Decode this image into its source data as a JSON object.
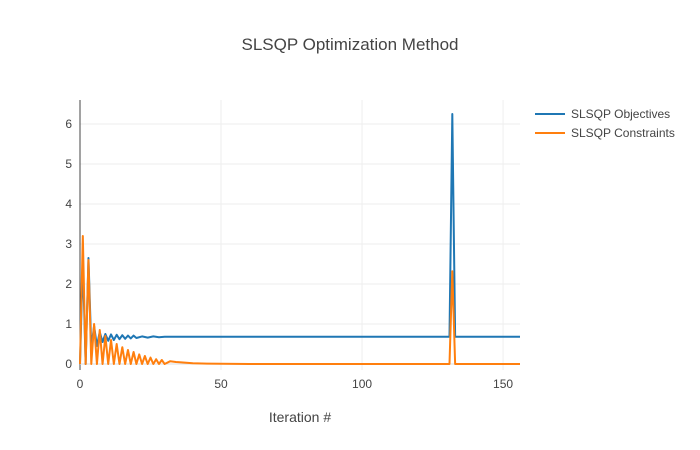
{
  "chart_data": {
    "type": "line",
    "title": "SLSQP Optimization Method",
    "xlabel": "Iteration #",
    "ylabel": "",
    "xlim": [
      0,
      156
    ],
    "ylim": [
      -0.15,
      6.6
    ],
    "x_ticks": [
      0,
      50,
      100,
      150
    ],
    "y_ticks": [
      0,
      1,
      2,
      3,
      4,
      5,
      6
    ],
    "grid": true,
    "legend_position": "top-right",
    "series": [
      {
        "name": "SLSQP Objectives",
        "color": "#1f77b4",
        "x": [
          0,
          1,
          2,
          3,
          4,
          5,
          6,
          7,
          8,
          9,
          10,
          11,
          12,
          13,
          14,
          15,
          16,
          17,
          18,
          19,
          20,
          22,
          24,
          26,
          28,
          30,
          35,
          40,
          45,
          50,
          55,
          60,
          70,
          80,
          90,
          100,
          110,
          120,
          130,
          131,
          132,
          133,
          134,
          140,
          150,
          156
        ],
        "y": [
          0,
          2.6,
          0.0,
          2.65,
          0.4,
          0.95,
          0.45,
          0.8,
          0.55,
          0.75,
          0.58,
          0.74,
          0.6,
          0.73,
          0.62,
          0.72,
          0.63,
          0.71,
          0.64,
          0.71,
          0.65,
          0.69,
          0.66,
          0.69,
          0.67,
          0.68,
          0.68,
          0.68,
          0.68,
          0.68,
          0.68,
          0.68,
          0.68,
          0.68,
          0.68,
          0.68,
          0.68,
          0.68,
          0.68,
          0.68,
          6.25,
          0.68,
          0.68,
          0.68,
          0.68,
          0.68
        ]
      },
      {
        "name": "SLSQP Constraints",
        "color": "#ff7f0e",
        "x": [
          0,
          1,
          2,
          3,
          4,
          5,
          6,
          7,
          8,
          9,
          10,
          11,
          12,
          13,
          14,
          15,
          16,
          17,
          18,
          19,
          20,
          21,
          22,
          23,
          24,
          25,
          26,
          27,
          28,
          29,
          30,
          32,
          34,
          36,
          40,
          45,
          50,
          60,
          70,
          80,
          90,
          100,
          110,
          120,
          130,
          131,
          132,
          133,
          134,
          140,
          150,
          156
        ],
        "y": [
          0,
          3.2,
          0.0,
          2.6,
          0.0,
          1.0,
          0.0,
          0.85,
          0.0,
          0.7,
          0.0,
          0.6,
          0.0,
          0.5,
          0.0,
          0.42,
          0.0,
          0.35,
          0.0,
          0.3,
          0.0,
          0.24,
          0.0,
          0.2,
          0.0,
          0.16,
          0.0,
          0.12,
          0.0,
          0.1,
          0.0,
          0.07,
          0.05,
          0.04,
          0.02,
          0.01,
          0.005,
          0.0,
          0.0,
          0.0,
          0.0,
          0.0,
          0.0,
          0.0,
          0.0,
          0.0,
          2.32,
          0.0,
          0.0,
          0.0,
          0.0,
          0.0
        ]
      }
    ]
  }
}
